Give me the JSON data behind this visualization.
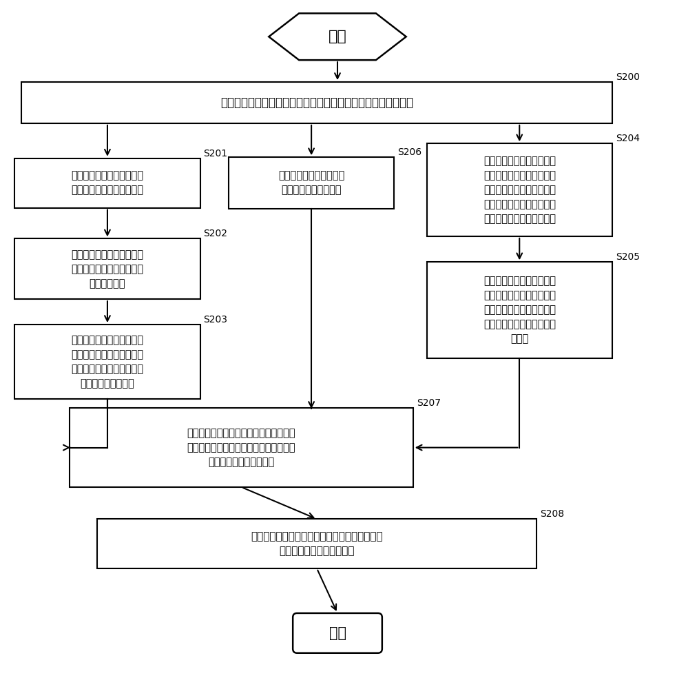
{
  "bg_color": "#ffffff",
  "line_color": "#000000",
  "box_fill": "#ffffff",
  "text_color": "#000000",
  "start_text": "开始",
  "end_text": "结束",
  "s200_text": "获取用户地理位置信息和用户终端已安装的应用程序的列表信息",
  "s200_label": "S200",
  "s201_text": "将用户地理位置信息进行组\n合处理，生成位置信息轨迹",
  "s201_label": "S201",
  "s202_text": "基于位置信息轨迹上的位置\n点获取位置点周围信息，生\n成位置点序列",
  "s202_label": "S202",
  "s203_text": "利用经过训练的时间递归神\n经网络对位置点序列进行序\n列学习，得到用户对应的用\n户地理位置特征向量",
  "s203_label": "S203",
  "s206_text": "根据用户地理位置信息生\n成位置一致性特征向量",
  "s206_label": "S206",
  "s204_text": "利用经过训练的嵌入模型对\n用户终端已安装的应用程序\n的列表信息中每个应用程序\n进行学习，得到每个应用程\n序对应的应用程序特征向量",
  "s204_label": "S204",
  "s205_text": "利用预设算法多个应用程序\n的应用程序特征向量进行运\n算处理，得到用户终端已安\n装的应用程序的应用程序特\n征向量",
  "s205_label": "S205",
  "s207_text": "根据位置一致性特征向量对用户地理位置\n特征向量进行校验处理，得到校验处理后\n的用户地理位置特征向量",
  "s207_label": "S207",
  "s208_text": "根据校验处理后的用户地理位置特征向量和应用\n程序特征向量构造用户画像",
  "s208_label": "S208"
}
